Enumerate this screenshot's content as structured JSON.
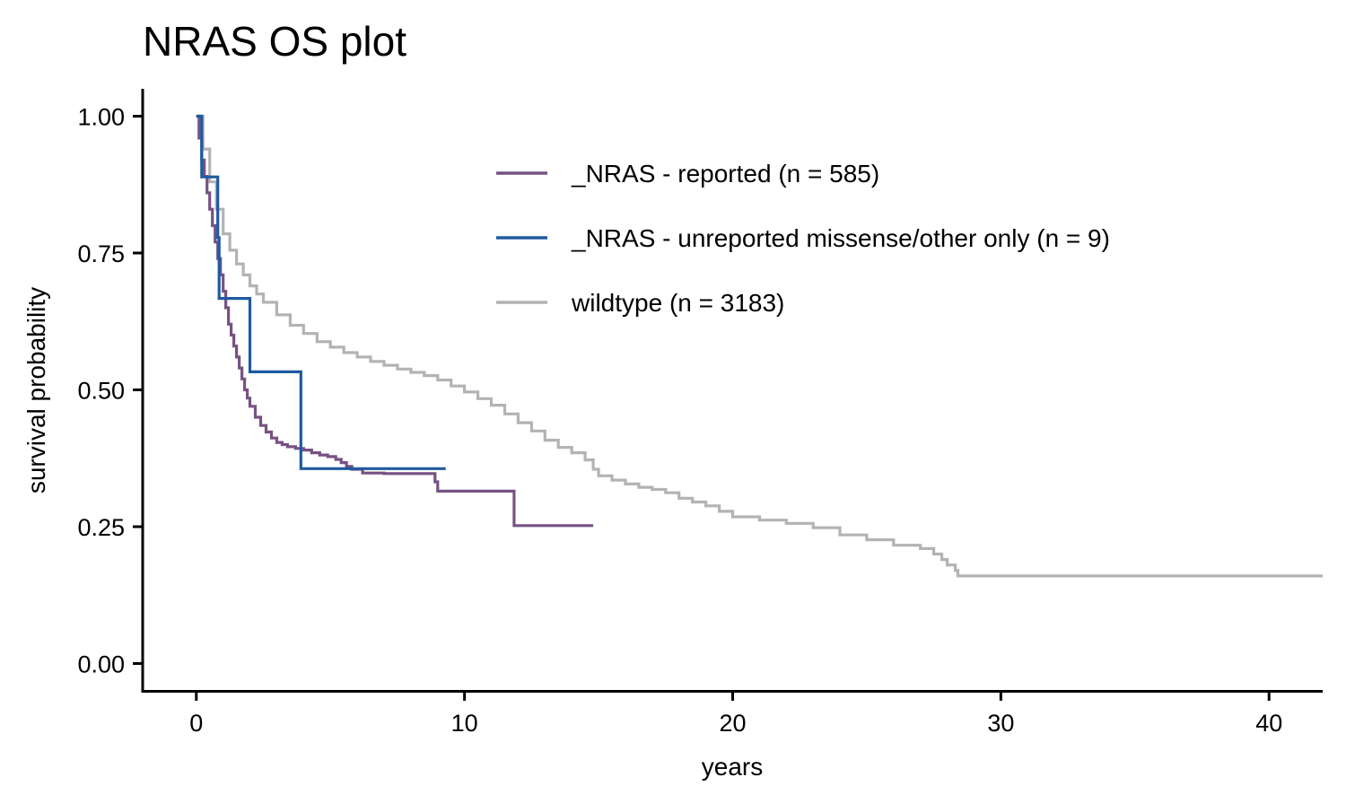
{
  "chart_data": {
    "type": "line",
    "subtype": "kaplan-meier step",
    "title": "NRAS OS plot",
    "xlabel": "years",
    "ylabel": "survival probability",
    "xlim": [
      -2,
      42
    ],
    "ylim": [
      -0.05,
      1.05
    ],
    "xticks": [
      0,
      10,
      20,
      30,
      40
    ],
    "xtick_labels": [
      "0",
      "10",
      "20",
      "30",
      "40"
    ],
    "yticks": [
      0,
      0.25,
      0.5,
      0.75,
      1
    ],
    "ytick_labels": [
      "0.00",
      "0.25",
      "0.50",
      "0.75",
      "1.00"
    ],
    "grid": false,
    "legend_position": "top-right inside",
    "series": [
      {
        "name": "_NRAS - reported (n = 585)",
        "color": "#765283",
        "x": [
          0,
          0.1,
          0.2,
          0.3,
          0.4,
          0.5,
          0.6,
          0.7,
          0.8,
          0.9,
          1.0,
          1.1,
          1.2,
          1.3,
          1.4,
          1.5,
          1.6,
          1.7,
          1.8,
          1.9,
          2.0,
          2.2,
          2.4,
          2.6,
          2.8,
          3.0,
          3.2,
          3.4,
          3.7,
          4.0,
          4.3,
          4.6,
          4.9,
          5.2,
          5.4,
          5.6,
          5.8,
          6.2,
          7.0,
          8.5,
          8.9,
          9.0,
          11.85,
          14.8
        ],
        "y": [
          1.0,
          0.96,
          0.92,
          0.89,
          0.86,
          0.83,
          0.8,
          0.77,
          0.74,
          0.71,
          0.68,
          0.65,
          0.62,
          0.6,
          0.58,
          0.56,
          0.54,
          0.52,
          0.5,
          0.485,
          0.47,
          0.45,
          0.435,
          0.423,
          0.412,
          0.404,
          0.4,
          0.396,
          0.393,
          0.39,
          0.385,
          0.381,
          0.378,
          0.373,
          0.367,
          0.36,
          0.355,
          0.348,
          0.347,
          0.347,
          0.332,
          0.315,
          0.252,
          0.252
        ]
      },
      {
        "name": "_NRAS - unreported missense/other only (n = 9)",
        "color": "#1f5aa0",
        "x": [
          0,
          0.2,
          0.8,
          0.85,
          2.0,
          3.9,
          9.3
        ],
        "y": [
          1.0,
          0.889,
          0.778,
          0.667,
          0.533,
          0.356,
          0.356
        ]
      },
      {
        "name": "wildtype (n = 3183)",
        "color": "#b3b3b3",
        "x": [
          0,
          0.25,
          0.5,
          0.75,
          1.0,
          1.25,
          1.5,
          1.75,
          2.0,
          2.25,
          2.5,
          3.0,
          3.5,
          4.0,
          4.5,
          5.0,
          5.5,
          6.0,
          6.5,
          7.0,
          7.5,
          8.0,
          8.5,
          9.0,
          9.5,
          10.0,
          10.5,
          11.0,
          11.5,
          12.0,
          12.5,
          13.0,
          13.5,
          14.0,
          14.5,
          14.8,
          15.0,
          15.5,
          16.0,
          16.5,
          17.0,
          17.5,
          18.0,
          18.5,
          19.0,
          19.5,
          20.0,
          21.0,
          22.0,
          23.0,
          24.0,
          25.0,
          26.0,
          27.0,
          27.5,
          27.8,
          28.0,
          28.3,
          28.4,
          42.0
        ],
        "y": [
          1.0,
          0.94,
          0.88,
          0.83,
          0.785,
          0.755,
          0.73,
          0.71,
          0.69,
          0.675,
          0.66,
          0.637,
          0.618,
          0.603,
          0.588,
          0.578,
          0.568,
          0.56,
          0.552,
          0.545,
          0.538,
          0.532,
          0.526,
          0.518,
          0.507,
          0.496,
          0.484,
          0.472,
          0.456,
          0.44,
          0.425,
          0.408,
          0.395,
          0.385,
          0.372,
          0.355,
          0.343,
          0.335,
          0.328,
          0.322,
          0.318,
          0.312,
          0.302,
          0.295,
          0.288,
          0.278,
          0.268,
          0.262,
          0.256,
          0.248,
          0.235,
          0.226,
          0.216,
          0.21,
          0.2,
          0.19,
          0.18,
          0.17,
          0.16,
          0.16
        ]
      }
    ]
  }
}
